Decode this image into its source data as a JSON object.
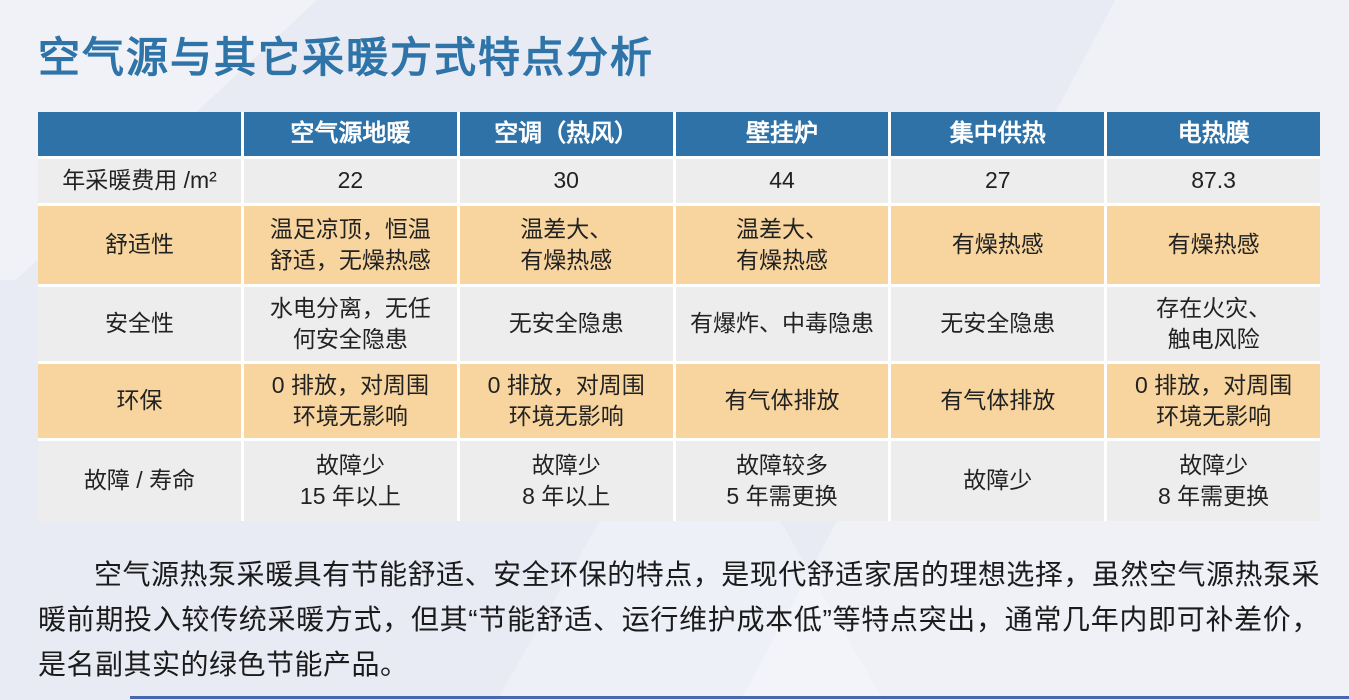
{
  "title": "空气源与其它采暖方式特点分析",
  "colors": {
    "title_color": "#2E74A8",
    "header_bg": "#2E72A8",
    "header_text": "#FFFFFF",
    "row_gray": "#EDEDED",
    "row_orange": "#F8D59E",
    "cell_text": "#222222",
    "page_bg": "#E9EBF4",
    "footer_line": "#4767B2"
  },
  "table": {
    "header": [
      "",
      "空气源地暖",
      "空调（热风）",
      "壁挂炉",
      "集中供热",
      "电热膜"
    ],
    "rows": [
      {
        "label": "年采暖费用 /m²",
        "cells": [
          "22",
          "30",
          "44",
          "27",
          "87.3"
        ]
      },
      {
        "label": "舒适性",
        "cells": [
          "温足凉顶，恒温\n舒适，无燥热感",
          "温差大、\n有燥热感",
          "温差大、\n有燥热感",
          "有燥热感",
          "有燥热感"
        ]
      },
      {
        "label": "安全性",
        "cells": [
          "水电分离，无任\n何安全隐患",
          "无安全隐患",
          "有爆炸、中毒隐患",
          "无安全隐患",
          "存在火灾、\n触电风险"
        ]
      },
      {
        "label": "环保",
        "cells": [
          "0 排放，对周围\n环境无影响",
          "0 排放，对周围\n环境无影响",
          "有气体排放",
          "有气体排放",
          "0 排放，对周围\n环境无影响"
        ]
      },
      {
        "label": "故障 / 寿命",
        "cells": [
          "故障少\n15 年以上",
          "故障少\n8 年以上",
          "故障较多\n5 年需更换",
          "故障少",
          "故障少\n8 年需更换"
        ]
      }
    ]
  },
  "paragraph": "空气源热泵采暖具有节能舒适、安全环保的特点，是现代舒适家居的理想选择，虽然空气源热泵采暖前期投入较传统采暖方式，但其“节能舒适、运行维护成本低”等特点突出，通常几年内即可补差价，是名副其实的绿色节能产品。"
}
